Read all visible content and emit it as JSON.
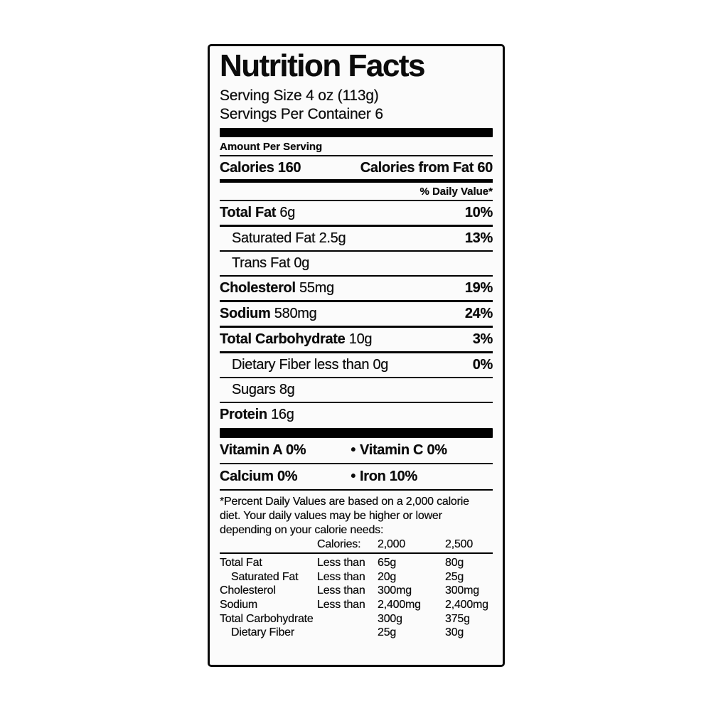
{
  "colors": {
    "ink": "#0c0c0c",
    "paper": "#fbfbfb",
    "bar": "#000000"
  },
  "label": {
    "title": "Nutrition Facts",
    "serving_size": "Serving Size 4 oz (113g)",
    "servings_per_container": "Servings Per Container 6",
    "amount_per_serving": "Amount Per Serving",
    "calories": {
      "text": "Calories 160",
      "from_fat": "Calories from Fat 60"
    },
    "daily_value_header": "% Daily Value*",
    "bullet": "•",
    "nutrients": [
      {
        "name": "Total Fat",
        "amount": "6g",
        "dv": "10%"
      },
      {
        "name": "Saturated Fat",
        "amount": "2.5g",
        "dv": "13%"
      },
      {
        "name": "Trans Fat",
        "amount": "0g",
        "dv": ""
      },
      {
        "name": "Cholesterol",
        "amount": "55mg",
        "dv": "19%"
      },
      {
        "name": "Sodium",
        "amount": "580mg",
        "dv": "24%"
      },
      {
        "name": "Total Carbohydrate",
        "amount": "10g",
        "dv": "3%"
      },
      {
        "name": "Dietary Fiber",
        "amount": "less than 0g",
        "dv": "0%"
      },
      {
        "name": "Sugars",
        "amount": "8g",
        "dv": ""
      },
      {
        "name": "Protein",
        "amount": "16g",
        "dv": ""
      }
    ],
    "vitamins": [
      {
        "left": "Vitamin A 0%",
        "right": "Vitamin C 0%"
      },
      {
        "left": "Calcium 0%",
        "right": "Iron 10%"
      }
    ],
    "footnote": "*Percent Daily Values are based on a 2,000 calorie diet. Your daily values may be higher or lower depending on your calorie needs:",
    "footer_table": {
      "header": {
        "label": "Calories:",
        "col_2000": "2,000",
        "col_2500": "2,500"
      },
      "rows": [
        {
          "name": "Total Fat",
          "qualifier": "Less than",
          "v2000": "65g",
          "v2500": "80g"
        },
        {
          "name": "Saturated Fat",
          "qualifier": "Less than",
          "v2000": "20g",
          "v2500": "25g"
        },
        {
          "name": "Cholesterol",
          "qualifier": "Less than",
          "v2000": "300mg",
          "v2500": "300mg"
        },
        {
          "name": "Sodium",
          "qualifier": "Less than",
          "v2000": "2,400mg",
          "v2500": "2,400mg"
        },
        {
          "name": "Total Carbohydrate",
          "qualifier": "",
          "v2000": "300g",
          "v2500": "375g"
        },
        {
          "name": "Dietary Fiber",
          "qualifier": "",
          "v2000": "25g",
          "v2500": "30g"
        }
      ]
    }
  }
}
